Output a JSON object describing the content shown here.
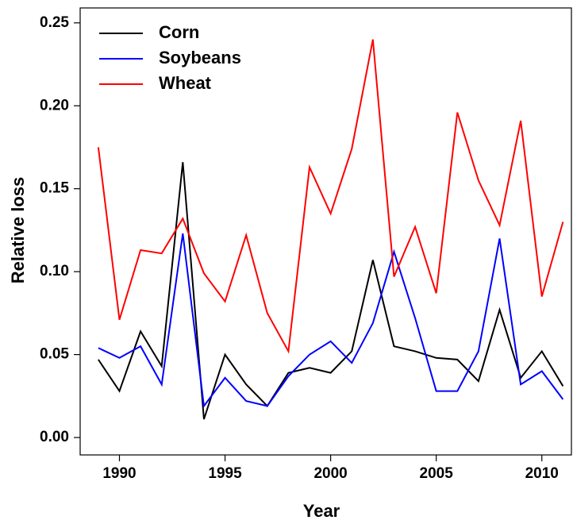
{
  "chart_data": {
    "type": "line",
    "x_label": "Year",
    "y_label": "Relative loss",
    "x": [
      1989,
      1990,
      1991,
      1992,
      1993,
      1994,
      1995,
      1996,
      1997,
      1998,
      1999,
      2000,
      2001,
      2002,
      2003,
      2004,
      2005,
      2006,
      2007,
      2008,
      2009,
      2010,
      2011
    ],
    "series": [
      {
        "name": "Corn",
        "color": "#000000",
        "values": [
          0.047,
          0.028,
          0.064,
          0.043,
          0.166,
          0.011,
          0.05,
          0.032,
          0.019,
          0.039,
          0.042,
          0.039,
          0.052,
          0.107,
          0.055,
          0.052,
          0.048,
          0.047,
          0.034,
          0.077,
          0.036,
          0.052,
          0.031
        ]
      },
      {
        "name": "Soybeans",
        "color": "#0000ff",
        "values": [
          0.054,
          0.048,
          0.055,
          0.032,
          0.123,
          0.019,
          0.036,
          0.022,
          0.019,
          0.037,
          0.05,
          0.058,
          0.045,
          0.069,
          0.112,
          0.072,
          0.028,
          0.028,
          0.052,
          0.12,
          0.032,
          0.04,
          0.023
        ]
      },
      {
        "name": "Wheat",
        "color": "#ff0000",
        "values": [
          0.175,
          0.071,
          0.113,
          0.111,
          0.132,
          0.099,
          0.082,
          0.122,
          0.075,
          0.052,
          0.163,
          0.135,
          0.174,
          0.24,
          0.097,
          0.127,
          0.087,
          0.196,
          0.155,
          0.128,
          0.191,
          0.085,
          0.13
        ]
      }
    ],
    "xlim": [
      1988.14,
      2011.4
    ],
    "xticks": [
      1990,
      1995,
      2000,
      2005,
      2010
    ],
    "ylim": [
      -0.0105,
      0.259
    ],
    "yticks": [
      {
        "value": 0,
        "label": "0.00"
      },
      {
        "value": 0.05,
        "label": "0.05"
      },
      {
        "value": 0.1,
        "label": "0.10"
      },
      {
        "value": 0.15,
        "label": "0.15"
      },
      {
        "value": 0.2,
        "label": "0.20"
      },
      {
        "value": 0.25,
        "label": "0.25"
      }
    ],
    "legend": "top-left"
  }
}
